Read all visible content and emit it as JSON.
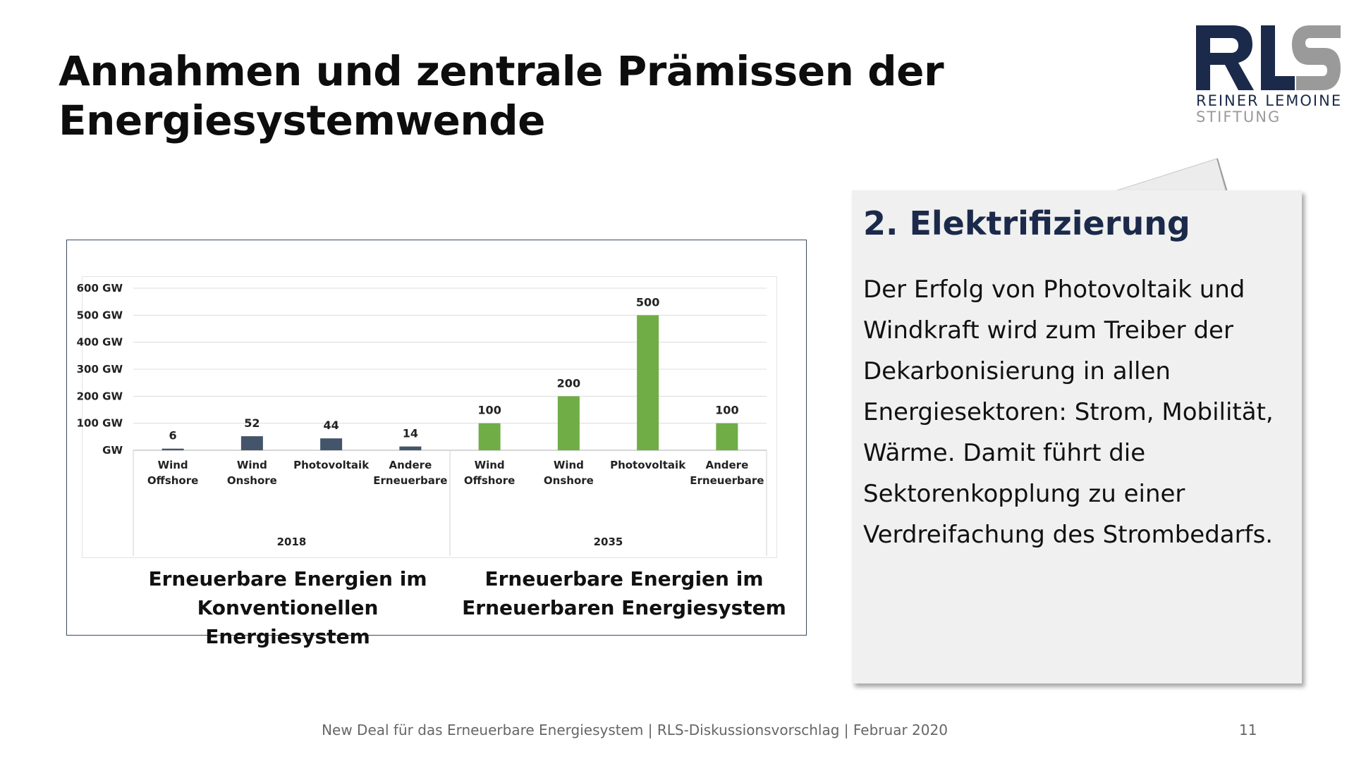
{
  "slide": {
    "title": "Annahmen und zentrale Prämissen der Energiesystemwende",
    "page_number": "11",
    "footer": "New Deal für das Erneuerbare Energiesystem | RLS-Diskussionsvorschlag | Februar 2020"
  },
  "logo": {
    "mark": "RLS",
    "line1": "REINER LEMOINE",
    "line2": "STIFTUNG",
    "colors": {
      "dark": "#1b2a4a",
      "grey": "#9a9a9a"
    }
  },
  "note": {
    "heading": "2. Elektrifizierung",
    "text": "Der Erfolg von Photovoltaik und Windkraft wird zum Treiber der Dekarbonisierung in allen Energiesektoren: Strom, Mobilität, Wärme. Damit führt die Sektorenkopplung zu einer Verdreifachung des Strombedarfs."
  },
  "chart_data": {
    "type": "bar",
    "ylim": [
      0,
      600
    ],
    "yticks": [
      "GW",
      "100 GW",
      "200 GW",
      "300 GW",
      "400 GW",
      "500 GW",
      "600 GW"
    ],
    "grid": true,
    "legend": "none",
    "groups": [
      {
        "label": "2018",
        "caption": [
          "Erneuerbare Energien im",
          "Konventionellen Energiesystem"
        ],
        "color": "#44546a",
        "categories": [
          [
            "Wind",
            "Offshore"
          ],
          [
            "Wind",
            "Onshore"
          ],
          [
            "Photovoltaik"
          ],
          [
            "Andere",
            "Erneuerbare"
          ]
        ],
        "values": [
          6,
          52,
          44,
          14
        ]
      },
      {
        "label": "2035",
        "caption": [
          "Erneuerbare Energien im",
          "Erneuerbaren Energiesystem"
        ],
        "color": "#70ad47",
        "categories": [
          [
            "Wind",
            "Offshore"
          ],
          [
            "Wind",
            "Onshore"
          ],
          [
            "Photovoltaik"
          ],
          [
            "Andere",
            "Erneuerbare"
          ]
        ],
        "values": [
          100,
          200,
          500,
          100
        ]
      }
    ]
  }
}
